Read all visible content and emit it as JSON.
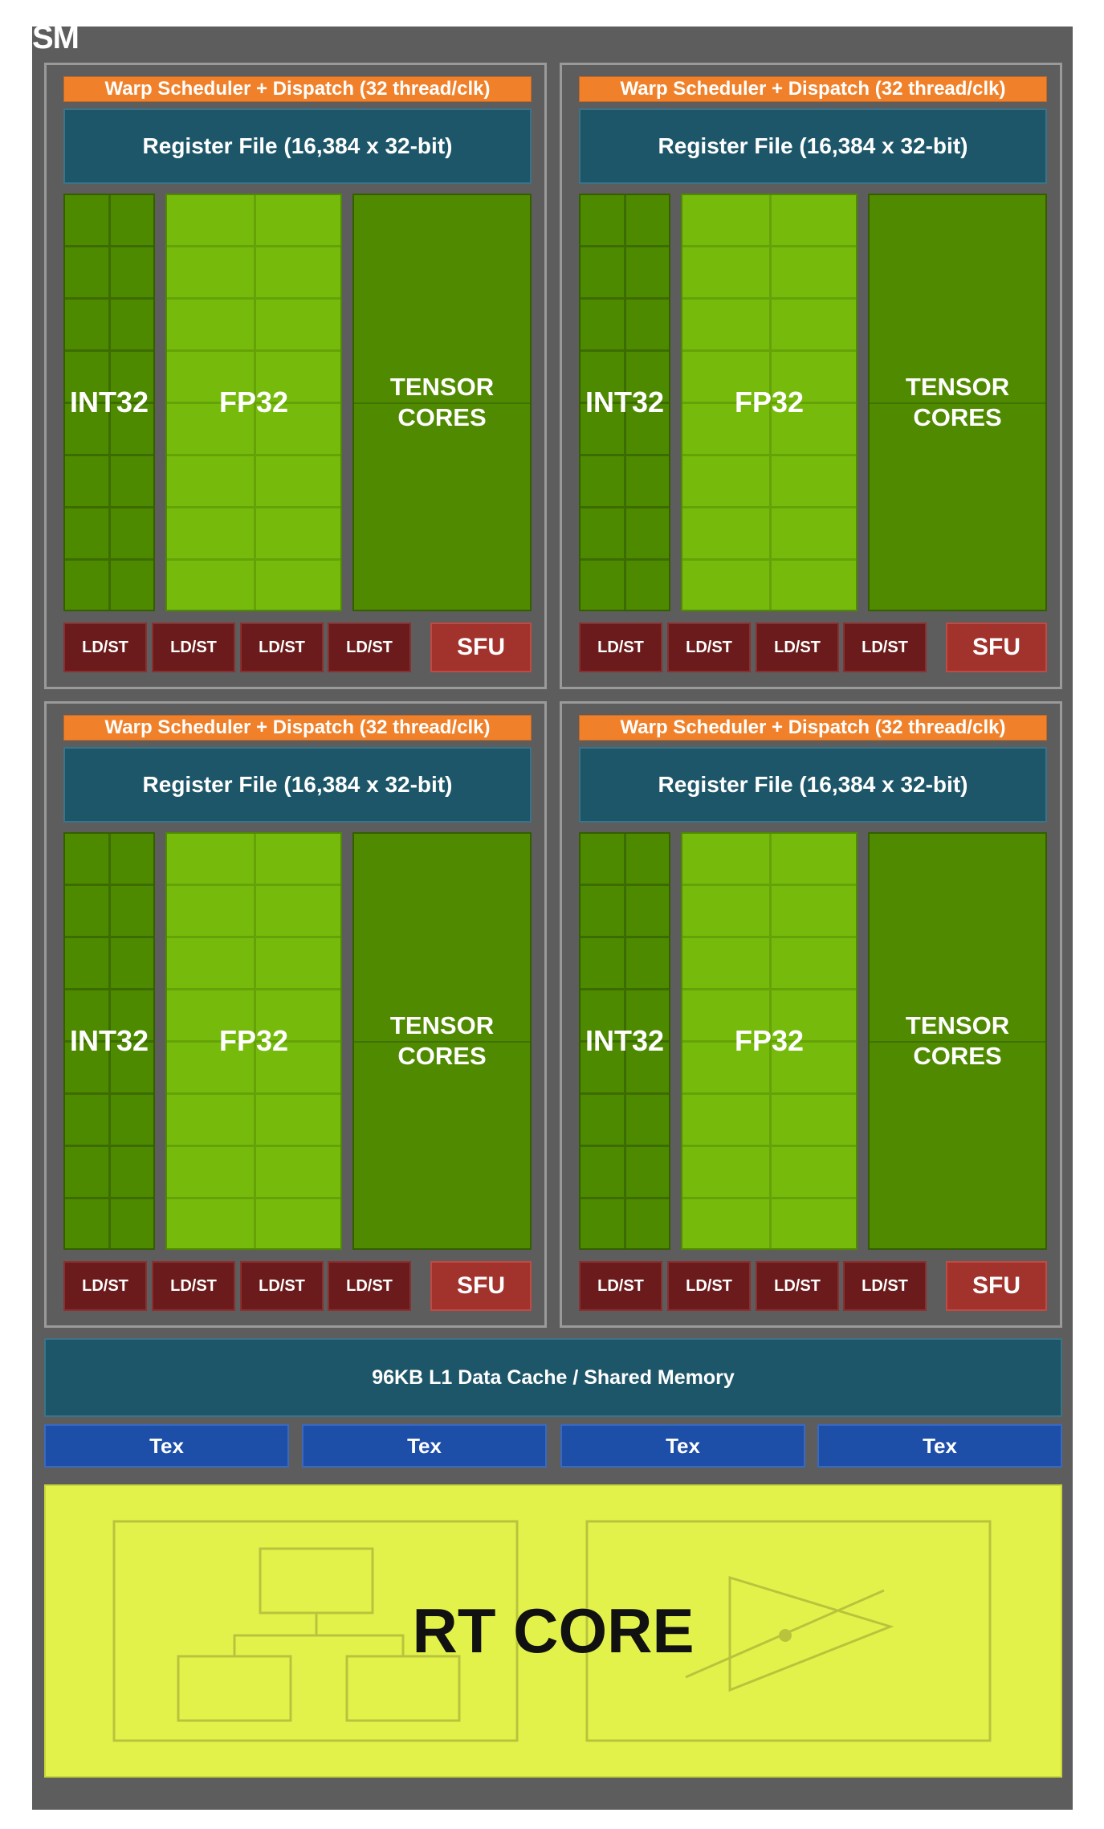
{
  "sm_label": "SM",
  "partition": {
    "warp_label": "Warp Scheduler + Dispatch (32 thread/clk)",
    "register_label": "Register File (16,384 x 32-bit)",
    "int32_label": "INT32",
    "fp32_label": "FP32",
    "tensor_line1": "TENSOR",
    "tensor_line2": "CORES",
    "ldst_labels": [
      "LD/ST",
      "LD/ST",
      "LD/ST",
      "LD/ST"
    ],
    "sfu_label": "SFU"
  },
  "partition_count": 4,
  "l1_label": "96KB L1 Data Cache / Shared Memory",
  "tex_labels": [
    "Tex",
    "Tex",
    "Tex",
    "Tex"
  ],
  "rt_core_label": "RT CORE",
  "colors": {
    "sm_background": "#5d5d5d",
    "warp_scheduler": "#f0812a",
    "register_file": "#1d5669",
    "int32": "#4d8a00",
    "fp32": "#76bb0c",
    "tensor_cores": "#4f8a00",
    "ldst": "#6b1b1b",
    "sfu": "#a2322c",
    "tex": "#1d4ea8",
    "rt_core": "#e3f24b"
  }
}
